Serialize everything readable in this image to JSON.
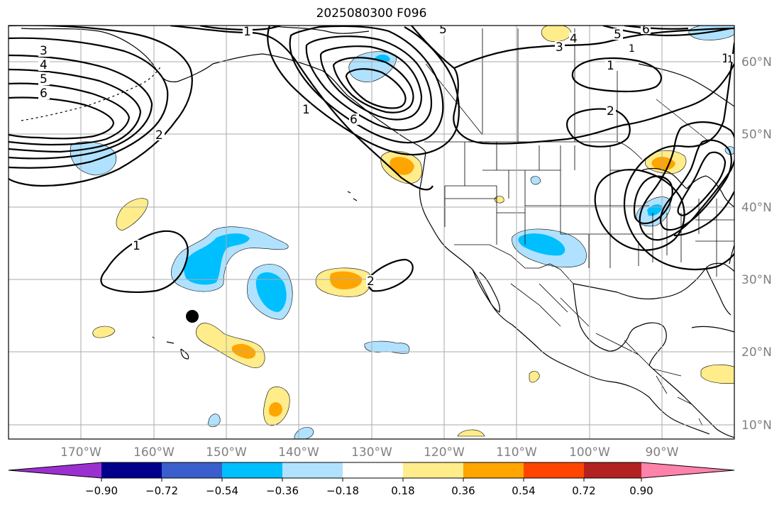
{
  "title": "2025080300 F096",
  "lon_labels": [
    "170°W",
    "160°W",
    "150°W",
    "140°W",
    "130°W",
    "120°W",
    "110°W",
    "100°W",
    "90°W"
  ],
  "lat_labels": [
    "60°N",
    "50°N",
    "40°N",
    "30°N",
    "20°N",
    "10°N"
  ],
  "contour_labels": [
    "1",
    "1",
    "1",
    "1",
    "1",
    "1",
    "1",
    "2",
    "2",
    "2",
    "3",
    "3",
    "4",
    "4",
    "5",
    "5",
    "5",
    "6",
    "6",
    "6"
  ],
  "colorbar": {
    "tick_labels": [
      "−0.90",
      "−0.72",
      "−0.54",
      "−0.36",
      "−0.18",
      "0.18",
      "0.36",
      "0.54",
      "0.72",
      "0.90"
    ],
    "colors": [
      "#9b30d0",
      "#00008b",
      "#3a5fcd",
      "#00bfff",
      "#b0e2ff",
      "#ffffff",
      "#ffec8b",
      "#ffa500",
      "#ff4500",
      "#b22222",
      "#ff82ab"
    ]
  },
  "colors": {
    "grid": "#aaaaaa",
    "coast": "#000000",
    "axis_label": "#808080"
  }
}
